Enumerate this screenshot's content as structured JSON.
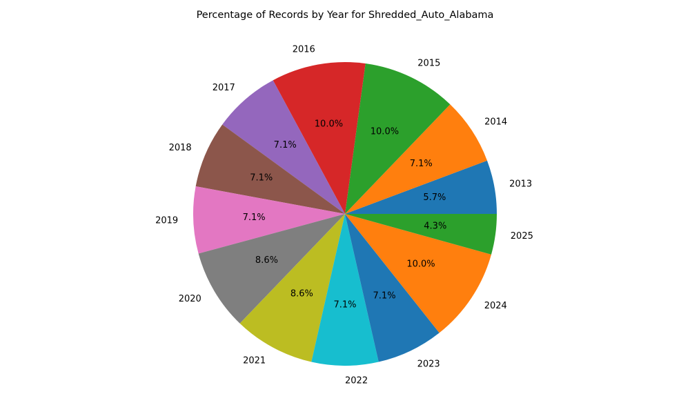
{
  "chart_data": {
    "type": "pie",
    "title": "Percentage of Records by Year for Shredded_Auto_Alabama",
    "start_angle_deg": 0,
    "direction": "counterclockwise",
    "slices": [
      {
        "label": "2013",
        "value": 5.7,
        "pct_label": "5.7%",
        "color": "#1f77b4"
      },
      {
        "label": "2014",
        "value": 7.1,
        "pct_label": "7.1%",
        "color": "#ff7f0e"
      },
      {
        "label": "2015",
        "value": 10.0,
        "pct_label": "10.0%",
        "color": "#2ca02c"
      },
      {
        "label": "2016",
        "value": 10.0,
        "pct_label": "10.0%",
        "color": "#d62728"
      },
      {
        "label": "2017",
        "value": 7.1,
        "pct_label": "7.1%",
        "color": "#9467bd"
      },
      {
        "label": "2018",
        "value": 7.1,
        "pct_label": "7.1%",
        "color": "#8c564b"
      },
      {
        "label": "2019",
        "value": 7.1,
        "pct_label": "7.1%",
        "color": "#e377c2"
      },
      {
        "label": "2020",
        "value": 8.6,
        "pct_label": "8.6%",
        "color": "#7f7f7f"
      },
      {
        "label": "2021",
        "value": 8.6,
        "pct_label": "8.6%",
        "color": "#bcbd22"
      },
      {
        "label": "2022",
        "value": 7.1,
        "pct_label": "7.1%",
        "color": "#17becf"
      },
      {
        "label": "2023",
        "value": 7.1,
        "pct_label": "7.1%",
        "color": "#1f77b4"
      },
      {
        "label": "2024",
        "value": 10.0,
        "pct_label": "10.0%",
        "color": "#ff7f0e"
      },
      {
        "label": "2025",
        "value": 4.3,
        "pct_label": "4.3%",
        "color": "#2ca02c"
      }
    ]
  }
}
